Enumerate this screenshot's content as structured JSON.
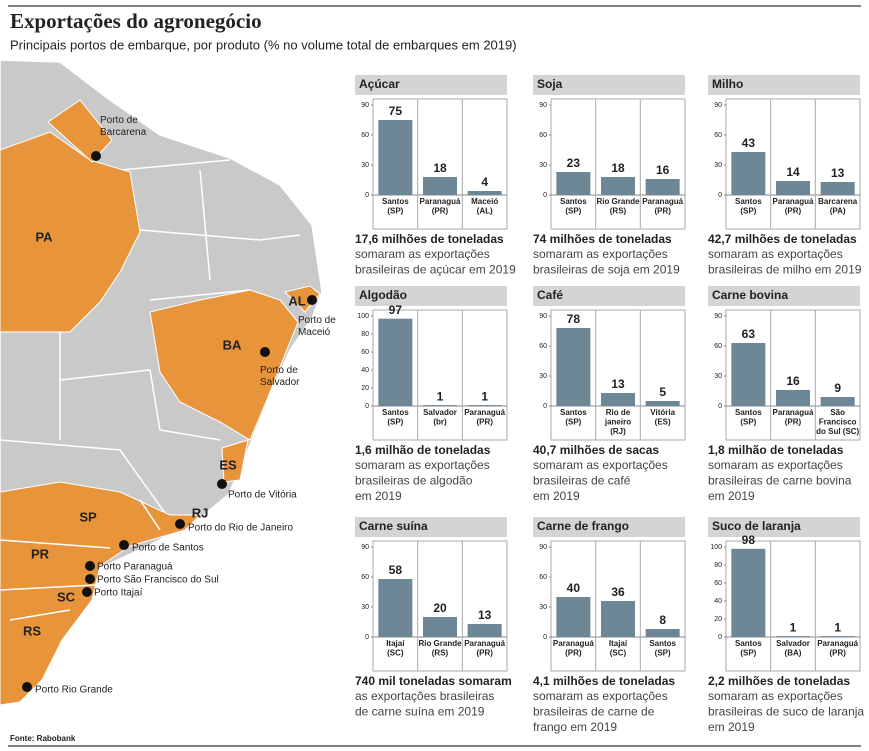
{
  "title": "Exportações do agronegócio",
  "subtitle": "Principais portos de embarque, por produto (% no volume total de embarques em 2019)",
  "source": "Fonte: Rabobank",
  "map": {
    "states": [
      "PA",
      "AL",
      "BA",
      "ES",
      "RJ",
      "SP",
      "PR",
      "SC",
      "RS"
    ],
    "ports": [
      "Porto de\nBarcarena",
      "Porto de\nMaceió",
      "Porto de\nSalvador",
      "Porto de Vitória",
      "Porto do Rio de Janeiro",
      "Porto de Santos",
      "Porto Paranaguá",
      "Porto São Francisco do Sul",
      "Porto Itajaí",
      "Porto Rio Grande"
    ]
  },
  "chart_data": [
    {
      "type": "bar",
      "title": "Açúcar",
      "categories": [
        "Santos\n(SP)",
        "Paranaguá\n(PR)",
        "Maceió\n(AL)"
      ],
      "values": [
        75,
        18,
        4
      ],
      "color": "#6d8796",
      "ylim": [
        0,
        90
      ],
      "yticks": [
        0,
        30,
        60,
        90
      ],
      "caption": {
        "highlight": "17,6 milhões de toneladas",
        "text": "somaram as exportações\nbrasileiras de açúcar em 2019"
      }
    },
    {
      "type": "bar",
      "title": "Soja",
      "categories": [
        "Santos\n(SP)",
        "Rio Grande\n(RS)",
        "Paranaguá\n(PR)"
      ],
      "values": [
        23,
        18,
        16
      ],
      "color": "#6d8796",
      "ylim": [
        0,
        90
      ],
      "yticks": [
        0,
        30,
        60,
        90
      ],
      "caption": {
        "highlight": "74 milhões de toneladas",
        "text": "somaram as exportações\nbrasileiras de soja em 2019"
      }
    },
    {
      "type": "bar",
      "title": "Milho",
      "categories": [
        "Santos\n(SP)",
        "Paranaguá\n(PR)",
        "Barcarena\n(PA)"
      ],
      "values": [
        43,
        14,
        13
      ],
      "color": "#6d8796",
      "ylim": [
        0,
        90
      ],
      "yticks": [
        0,
        30,
        60,
        90
      ],
      "caption": {
        "highlight": "42,7 milhões de toneladas",
        "text": "somaram as exportações\nbrasileiras de milho em 2019"
      }
    },
    {
      "type": "bar",
      "title": "Algodão",
      "categories": [
        "Santos\n(SP)",
        "Salvador\n(br)",
        "Paranaguá\n(PR)"
      ],
      "values": [
        97,
        1,
        1
      ],
      "color": "#6d8796",
      "ylim": [
        0,
        100
      ],
      "yticks": [
        0,
        20,
        40,
        60,
        80,
        100
      ],
      "caption": {
        "highlight": "1,6 milhão de toneladas",
        "text": "somaram as exportações\nbrasileiras de algodão\nem 2019"
      }
    },
    {
      "type": "bar",
      "title": "Café",
      "categories": [
        "Santos\n(SP)",
        "Rio de\njaneiro\n(RJ)",
        "Vitória\n(ES)"
      ],
      "values": [
        78,
        13,
        5
      ],
      "color": "#6d8796",
      "ylim": [
        0,
        90
      ],
      "yticks": [
        0,
        30,
        60,
        90
      ],
      "caption": {
        "highlight": "40,7 milhões de sacas",
        "text": "somaram as exportações\nbrasileiras de café\nem 2019"
      }
    },
    {
      "type": "bar",
      "title": "Carne bovina",
      "categories": [
        "Santos\n(SP)",
        "Paranaguá\n(PR)",
        "São\nFrancisco\ndo Sul (SC)"
      ],
      "values": [
        63,
        16,
        9
      ],
      "color": "#6d8796",
      "ylim": [
        0,
        90
      ],
      "yticks": [
        0,
        30,
        60,
        90
      ],
      "caption": {
        "highlight": "1,8 milhão de toneladas",
        "text": "somaram as exportações\nbrasileiras de carne bovina\nem 2019"
      }
    },
    {
      "type": "bar",
      "title": "Carne suína",
      "categories": [
        "Itajaí\n(SC)",
        "Rio Grande\n(RS)",
        "Paranaguá\n(PR)"
      ],
      "values": [
        58,
        20,
        13
      ],
      "color": "#6d8796",
      "ylim": [
        0,
        90
      ],
      "yticks": [
        0,
        30,
        60,
        90
      ],
      "caption": {
        "highlight": "740 mil toneladas somaram",
        "text": "as exportações brasileiras\nde carne suína em 2019"
      }
    },
    {
      "type": "bar",
      "title": "Carne de frango",
      "categories": [
        "Paranaguá\n(PR)",
        "Itajaí\n(SC)",
        "Santos\n(SP)"
      ],
      "values": [
        40,
        36,
        8
      ],
      "color": "#6d8796",
      "ylim": [
        0,
        90
      ],
      "yticks": [
        0,
        30,
        60,
        90
      ],
      "caption": {
        "highlight": "4,1 milhões de toneladas",
        "text": "somaram as exportações\nbrasileiras de carne de\nfrango em 2019"
      }
    },
    {
      "type": "bar",
      "title": "Suco de laranja",
      "categories": [
        "Santos\n(SP)",
        "Salvador\n(BA)",
        "Paranaguá\n(PR)"
      ],
      "values": [
        98,
        1,
        1
      ],
      "color": "#6d8796",
      "ylim": [
        0,
        100
      ],
      "yticks": [
        0,
        20,
        40,
        60,
        80,
        100
      ],
      "caption": {
        "highlight": "2,2 milhões de toneladas",
        "text": "somaram as exportações\nbrasileiras de suco de laranja\nem 2019"
      }
    }
  ]
}
